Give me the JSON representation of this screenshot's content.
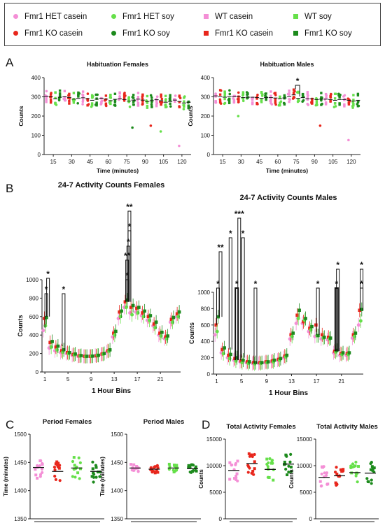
{
  "legend": {
    "items": [
      {
        "label": "Fmr1 HET casein",
        "color": "#f48fd6",
        "shape": "circle"
      },
      {
        "label": "Fmr1 HET soy",
        "color": "#66e04a",
        "shape": "circle"
      },
      {
        "label": "WT casein",
        "color": "#f48fd6",
        "shape": "square"
      },
      {
        "label": "WT soy",
        "color": "#66e04a",
        "shape": "square"
      },
      {
        "label": "Fmr1 KO casein",
        "color": "#e8261c",
        "shape": "circle"
      },
      {
        "label": "Fmr1 KO soy",
        "color": "#1c8a1c",
        "shape": "circle"
      },
      {
        "label": "Fmr1 KO casein",
        "color": "#e8261c",
        "shape": "square"
      },
      {
        "label": "Fmr1 KO soy",
        "color": "#1c8a1c",
        "shape": "square"
      }
    ]
  },
  "panels": {
    "A": "A",
    "B": "B",
    "C": "C",
    "D": "D"
  },
  "chart_data": [
    {
      "id": "hab-f",
      "type": "scatter",
      "title": "Habituation Females",
      "xlabel": "Time (minutes)",
      "ylabel": "Counts",
      "xticks": [
        15,
        30,
        45,
        60,
        75,
        90,
        105,
        120
      ],
      "yticks": [
        0,
        100,
        200,
        300,
        400
      ],
      "ylim": [
        0,
        400
      ],
      "group_means": [
        [
          303,
          300,
          290,
          298
        ],
        [
          300,
          297,
          288,
          292
        ],
        [
          295,
          290,
          282,
          288
        ],
        [
          293,
          288,
          280,
          287
        ],
        [
          290,
          286,
          278,
          283
        ],
        [
          288,
          283,
          276,
          280
        ],
        [
          285,
          280,
          272,
          276
        ],
        [
          283,
          276,
          268,
          272
        ]
      ],
      "outliers": [
        [
          120,
          45
        ],
        [
          90,
          150
        ],
        [
          105,
          120
        ],
        [
          75,
          140
        ]
      ],
      "annotations": []
    },
    {
      "id": "hab-m",
      "type": "scatter",
      "title": "Habituation Males",
      "xlabel": "Time (minutes)",
      "ylabel": "Counts",
      "xticks": [
        15,
        30,
        45,
        60,
        75,
        90,
        105,
        120
      ],
      "yticks": [
        0,
        100,
        200,
        300,
        400
      ],
      "ylim": [
        0,
        400
      ],
      "group_means": [
        [
          305,
          300,
          298,
          302
        ],
        [
          302,
          300,
          296,
          298
        ],
        [
          298,
          296,
          292,
          296
        ],
        [
          296,
          294,
          290,
          294
        ],
        [
          300,
          310,
          292,
          296
        ],
        [
          290,
          290,
          286,
          288
        ],
        [
          288,
          286,
          282,
          286
        ],
        [
          286,
          282,
          278,
          282
        ]
      ],
      "outliers": [
        [
          120,
          75
        ],
        [
          90,
          150
        ],
        [
          30,
          200
        ]
      ],
      "annotations": [
        {
          "x": 75,
          "label": "*"
        }
      ]
    },
    {
      "id": "act-f",
      "type": "line",
      "title": "24-7 Activity Counts Females",
      "xlabel": "1 Hour Bins",
      "ylabel": "Counts",
      "xticks": [
        1,
        5,
        9,
        13,
        17,
        21
      ],
      "yticks": [
        0,
        200,
        400,
        600,
        800,
        1000
      ],
      "ylim": [
        0,
        1000
      ],
      "series": [
        {
          "values": [
            450,
            260,
            230,
            210,
            200,
            180,
            170,
            170,
            170,
            180,
            190,
            220,
            380,
            580,
            700,
            640,
            650,
            610,
            560,
            500,
            400,
            360,
            540,
            600
          ]
        },
        {
          "values": [
            580,
            320,
            270,
            230,
            210,
            190,
            175,
            170,
            170,
            175,
            195,
            230,
            420,
            650,
            760,
            700,
            690,
            640,
            600,
            520,
            420,
            380,
            570,
            630
          ]
        },
        {
          "values": [
            500,
            270,
            240,
            215,
            200,
            185,
            172,
            168,
            172,
            182,
            192,
            225,
            400,
            600,
            700,
            620,
            640,
            600,
            560,
            480,
            390,
            360,
            540,
            600
          ]
        },
        {
          "values": [
            590,
            330,
            280,
            240,
            210,
            195,
            178,
            170,
            172,
            180,
            200,
            240,
            440,
            660,
            780,
            720,
            700,
            660,
            610,
            540,
            430,
            390,
            590,
            650
          ]
        }
      ],
      "annotations": [
        "*",
        "*",
        "*",
        "*",
        "**",
        "*",
        "*",
        "**",
        "*",
        "*",
        "*",
        "**"
      ]
    },
    {
      "id": "act-m",
      "type": "line",
      "title": "24-7 Activity Counts Males",
      "xlabel": "1 Hour Bins",
      "ylabel": "Counts",
      "xticks": [
        1,
        5,
        9,
        13,
        17,
        21
      ],
      "yticks": [
        0,
        200,
        400,
        600,
        800,
        1000
      ],
      "ylim": [
        0,
        1000
      ],
      "series": [
        {
          "values": [
            480,
            260,
            200,
            170,
            150,
            140,
            130,
            130,
            140,
            150,
            170,
            200,
            430,
            620,
            620,
            520,
            460,
            430,
            420,
            260,
            230,
            230,
            440,
            600
          ]
        },
        {
          "values": [
            600,
            300,
            230,
            190,
            160,
            150,
            140,
            140,
            150,
            160,
            180,
            220,
            480,
            720,
            640,
            560,
            600,
            480,
            450,
            280,
            250,
            250,
            480,
            780
          ]
        },
        {
          "values": [
            520,
            250,
            190,
            160,
            140,
            130,
            125,
            130,
            140,
            150,
            170,
            210,
            460,
            680,
            660,
            540,
            470,
            440,
            430,
            270,
            240,
            240,
            460,
            650
          ]
        },
        {
          "values": [
            700,
            320,
            240,
            200,
            170,
            150,
            140,
            140,
            150,
            170,
            190,
            230,
            500,
            780,
            680,
            580,
            470,
            450,
            440,
            290,
            260,
            260,
            500,
            790
          ]
        }
      ],
      "annotations": [
        "*",
        "**",
        "*",
        "*",
        "***",
        "*",
        "*",
        "*",
        "*",
        "*",
        "*",
        "*",
        "*",
        "*",
        "**",
        "*"
      ]
    },
    {
      "id": "per-f",
      "type": "scatter",
      "title": "Period Females",
      "xlabel": "",
      "ylabel": "Time (minutes)",
      "yticks": [
        1350,
        1400,
        1450,
        1500
      ],
      "ylim": [
        1350,
        1500
      ],
      "group_means": [
        1441,
        1434,
        1440,
        1434
      ]
    },
    {
      "id": "per-m",
      "type": "scatter",
      "title": "Period Males",
      "xlabel": "",
      "ylabel": "Time (minutes)",
      "yticks": [
        1350,
        1400,
        1450,
        1500
      ],
      "ylim": [
        1350,
        1500
      ],
      "group_means": [
        1440,
        1438,
        1440,
        1439
      ]
    },
    {
      "id": "tot-f",
      "type": "scatter",
      "title": "Total Activity Females",
      "xlabel": "",
      "ylabel": "Counts",
      "yticks": [
        0,
        5000,
        10000,
        15000
      ],
      "ylim": [
        0,
        15000
      ],
      "group_means": [
        9100,
        10400,
        9300,
        10300
      ]
    },
    {
      "id": "tot-m",
      "type": "scatter",
      "title": "Total Activity Males",
      "xlabel": "",
      "ylabel": "Counts",
      "yticks": [
        0,
        5000,
        10000,
        15000
      ],
      "ylim": [
        0,
        15000
      ],
      "group_means": [
        7800,
        8100,
        8700,
        8600
      ]
    }
  ]
}
